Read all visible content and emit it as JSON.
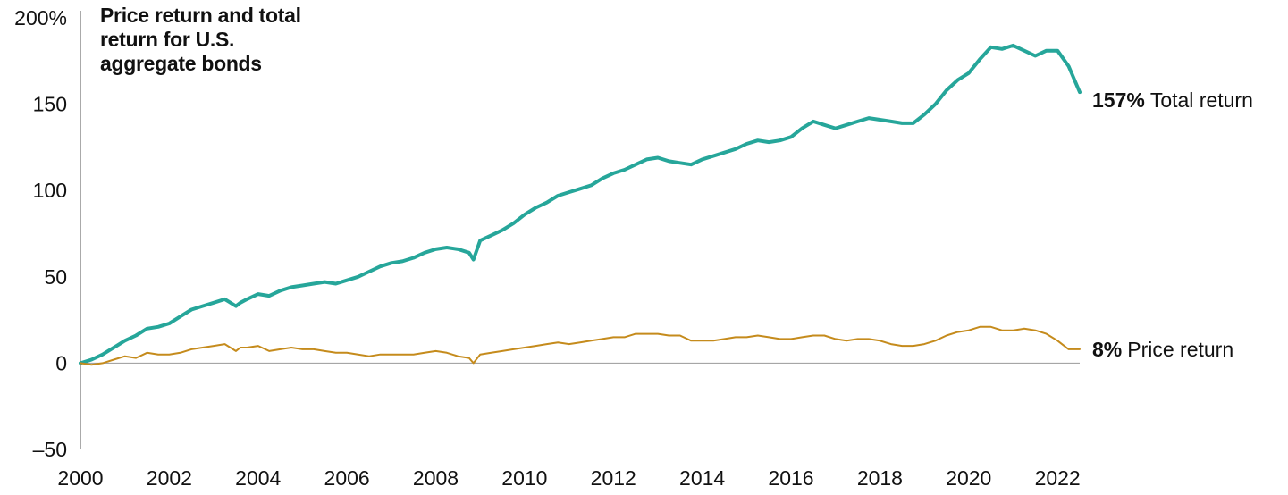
{
  "chart_data": {
    "type": "line",
    "title": "Price return and total return for U.S. aggregate bonds",
    "xlabel": "",
    "ylabel": "",
    "xlim": [
      2000,
      2022.5
    ],
    "ylim": [
      -50,
      200
    ],
    "x_ticks": [
      "2000",
      "2002",
      "2004",
      "2006",
      "2008",
      "2010",
      "2012",
      "2014",
      "2016",
      "2018",
      "2020",
      "2022"
    ],
    "y_ticks": [
      {
        "value": 200,
        "label": "200%"
      },
      {
        "value": 150,
        "label": "150"
      },
      {
        "value": 100,
        "label": "100"
      },
      {
        "value": 50,
        "label": "50"
      },
      {
        "value": 0,
        "label": "0"
      },
      {
        "value": -50,
        "label": "–50"
      }
    ],
    "grid": false,
    "legend": "none",
    "series": [
      {
        "name": "Total return",
        "end_label_value": "157%",
        "end_label_name": "Total return",
        "color": "#26a69a",
        "x": [
          2000,
          2000.25,
          2000.5,
          2000.75,
          2001,
          2001.25,
          2001.5,
          2001.75,
          2002,
          2002.25,
          2002.5,
          2002.75,
          2003,
          2003.25,
          2003.5,
          2003.6,
          2003.75,
          2004,
          2004.25,
          2004.5,
          2004.75,
          2005,
          2005.25,
          2005.5,
          2005.75,
          2006,
          2006.25,
          2006.5,
          2006.75,
          2007,
          2007.25,
          2007.5,
          2007.75,
          2008,
          2008.25,
          2008.5,
          2008.75,
          2008.85,
          2009,
          2009.25,
          2009.5,
          2009.75,
          2010,
          2010.25,
          2010.5,
          2010.75,
          2011,
          2011.25,
          2011.5,
          2011.75,
          2012,
          2012.25,
          2012.5,
          2012.75,
          2013,
          2013.25,
          2013.5,
          2013.75,
          2014,
          2014.25,
          2014.5,
          2014.75,
          2015,
          2015.25,
          2015.5,
          2015.75,
          2016,
          2016.25,
          2016.5,
          2016.75,
          2017,
          2017.25,
          2017.5,
          2017.75,
          2018,
          2018.25,
          2018.5,
          2018.75,
          2019,
          2019.25,
          2019.5,
          2019.75,
          2020,
          2020.25,
          2020.5,
          2020.75,
          2021,
          2021.25,
          2021.5,
          2021.75,
          2022,
          2022.25,
          2022.5
        ],
        "values": [
          0,
          2,
          5,
          9,
          13,
          16,
          20,
          21,
          23,
          27,
          31,
          33,
          35,
          37,
          33,
          35,
          37,
          40,
          39,
          42,
          44,
          45,
          46,
          47,
          46,
          48,
          50,
          53,
          56,
          58,
          59,
          61,
          64,
          66,
          67,
          66,
          64,
          60,
          71,
          74,
          77,
          81,
          86,
          90,
          93,
          97,
          99,
          101,
          103,
          107,
          110,
          112,
          115,
          118,
          119,
          117,
          116,
          115,
          118,
          120,
          122,
          124,
          127,
          129,
          128,
          129,
          131,
          136,
          140,
          138,
          136,
          138,
          140,
          142,
          141,
          140,
          139,
          139,
          144,
          150,
          158,
          164,
          168,
          176,
          183,
          182,
          184,
          181,
          178,
          181,
          181,
          172,
          157
        ]
      },
      {
        "name": "Price return",
        "end_label_value": "8%",
        "end_label_name": "Price return",
        "color": "#c58b1c",
        "x": [
          2000,
          2000.25,
          2000.5,
          2000.75,
          2001,
          2001.25,
          2001.5,
          2001.75,
          2002,
          2002.25,
          2002.5,
          2002.75,
          2003,
          2003.25,
          2003.5,
          2003.6,
          2003.75,
          2004,
          2004.25,
          2004.5,
          2004.75,
          2005,
          2005.25,
          2005.5,
          2005.75,
          2006,
          2006.25,
          2006.5,
          2006.75,
          2007,
          2007.25,
          2007.5,
          2007.75,
          2008,
          2008.25,
          2008.5,
          2008.75,
          2008.85,
          2009,
          2009.25,
          2009.5,
          2009.75,
          2010,
          2010.25,
          2010.5,
          2010.75,
          2011,
          2011.25,
          2011.5,
          2011.75,
          2012,
          2012.25,
          2012.5,
          2012.75,
          2013,
          2013.25,
          2013.5,
          2013.75,
          2014,
          2014.25,
          2014.5,
          2014.75,
          2015,
          2015.25,
          2015.5,
          2015.75,
          2016,
          2016.25,
          2016.5,
          2016.75,
          2017,
          2017.25,
          2017.5,
          2017.75,
          2018,
          2018.25,
          2018.5,
          2018.75,
          2019,
          2019.25,
          2019.5,
          2019.75,
          2020,
          2020.25,
          2020.5,
          2020.75,
          2021,
          2021.25,
          2021.5,
          2021.75,
          2022,
          2022.25,
          2022.5
        ],
        "values": [
          0,
          -1,
          0,
          2,
          4,
          3,
          6,
          5,
          5,
          6,
          8,
          9,
          10,
          11,
          7,
          9,
          9,
          10,
          7,
          8,
          9,
          8,
          8,
          7,
          6,
          6,
          5,
          4,
          5,
          5,
          5,
          5,
          6,
          7,
          6,
          4,
          3,
          0,
          5,
          6,
          7,
          8,
          9,
          10,
          11,
          12,
          11,
          12,
          13,
          14,
          15,
          15,
          17,
          17,
          17,
          16,
          16,
          13,
          13,
          13,
          14,
          15,
          15,
          16,
          15,
          14,
          14,
          15,
          16,
          16,
          14,
          13,
          14,
          14,
          13,
          11,
          10,
          10,
          11,
          13,
          16,
          18,
          19,
          21,
          21,
          19,
          19,
          20,
          19,
          17,
          13,
          8,
          8
        ]
      }
    ]
  }
}
